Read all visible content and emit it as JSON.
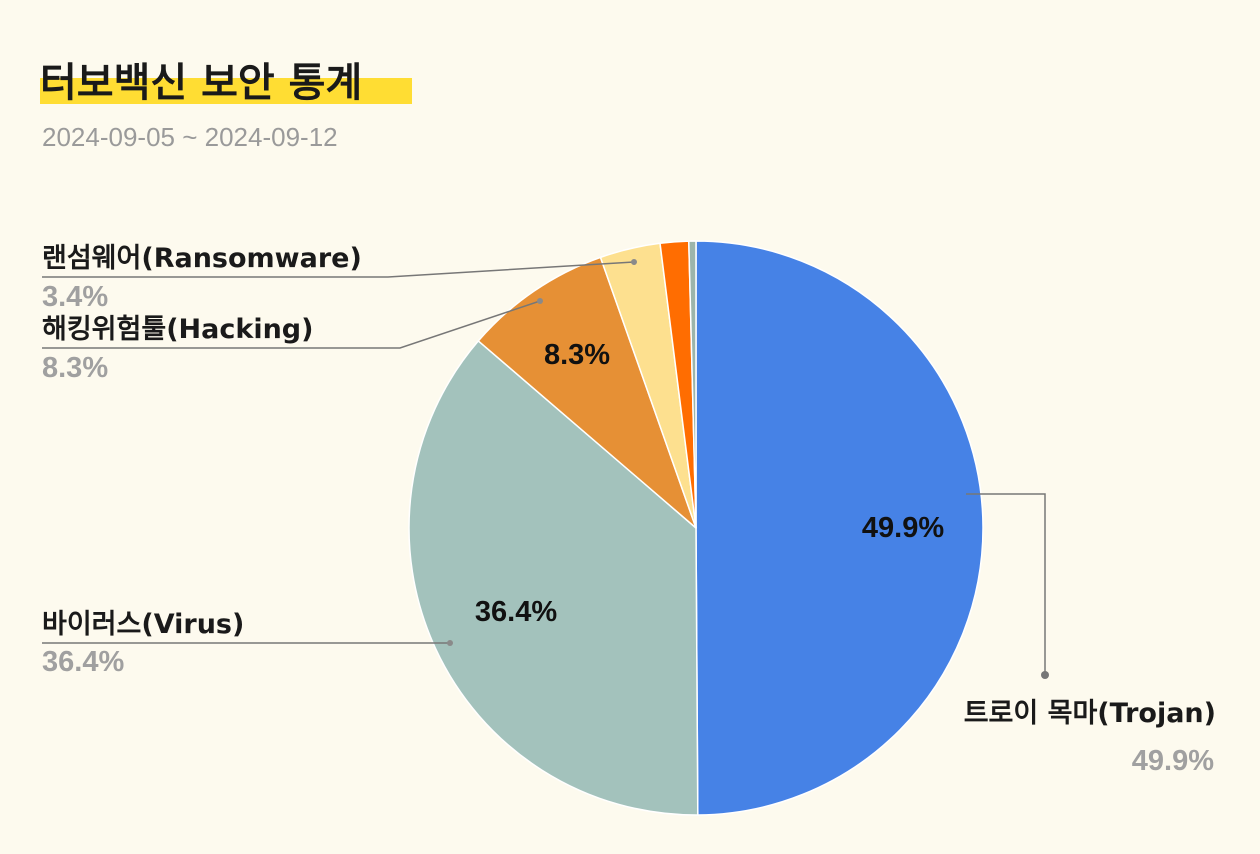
{
  "header": {
    "title": "터보백신 보안 통계",
    "subtitle": "2024-09-05 ~ 2024-09-12"
  },
  "chart_data": {
    "type": "pie",
    "slices": [
      {
        "name": "트로이 목마(Trojan)",
        "value": 49.9,
        "label": "49.9%",
        "inside_label": "49.9%",
        "color": "#4682e6"
      },
      {
        "name": "바이러스(Virus)",
        "value": 36.4,
        "label": "36.4%",
        "inside_label": "36.4%",
        "color": "#a3c2bc"
      },
      {
        "name": "해킹위험툴(Hacking)",
        "value": 8.3,
        "label": "8.3%",
        "inside_label": "8.3%",
        "color": "#e69035"
      },
      {
        "name": "랜섬웨어(Ransomware)",
        "value": 3.4,
        "label": "3.4%",
        "inside_label": "",
        "color": "#fde08f"
      },
      {
        "name": "",
        "value": 1.6,
        "label": "",
        "inside_label": "",
        "color": "#ff6d01"
      },
      {
        "name": "",
        "value": 0.4,
        "label": "",
        "inside_label": "",
        "color": "#9cb5ab"
      }
    ],
    "start_angle": "12 o'clock",
    "direction": "clockwise"
  }
}
